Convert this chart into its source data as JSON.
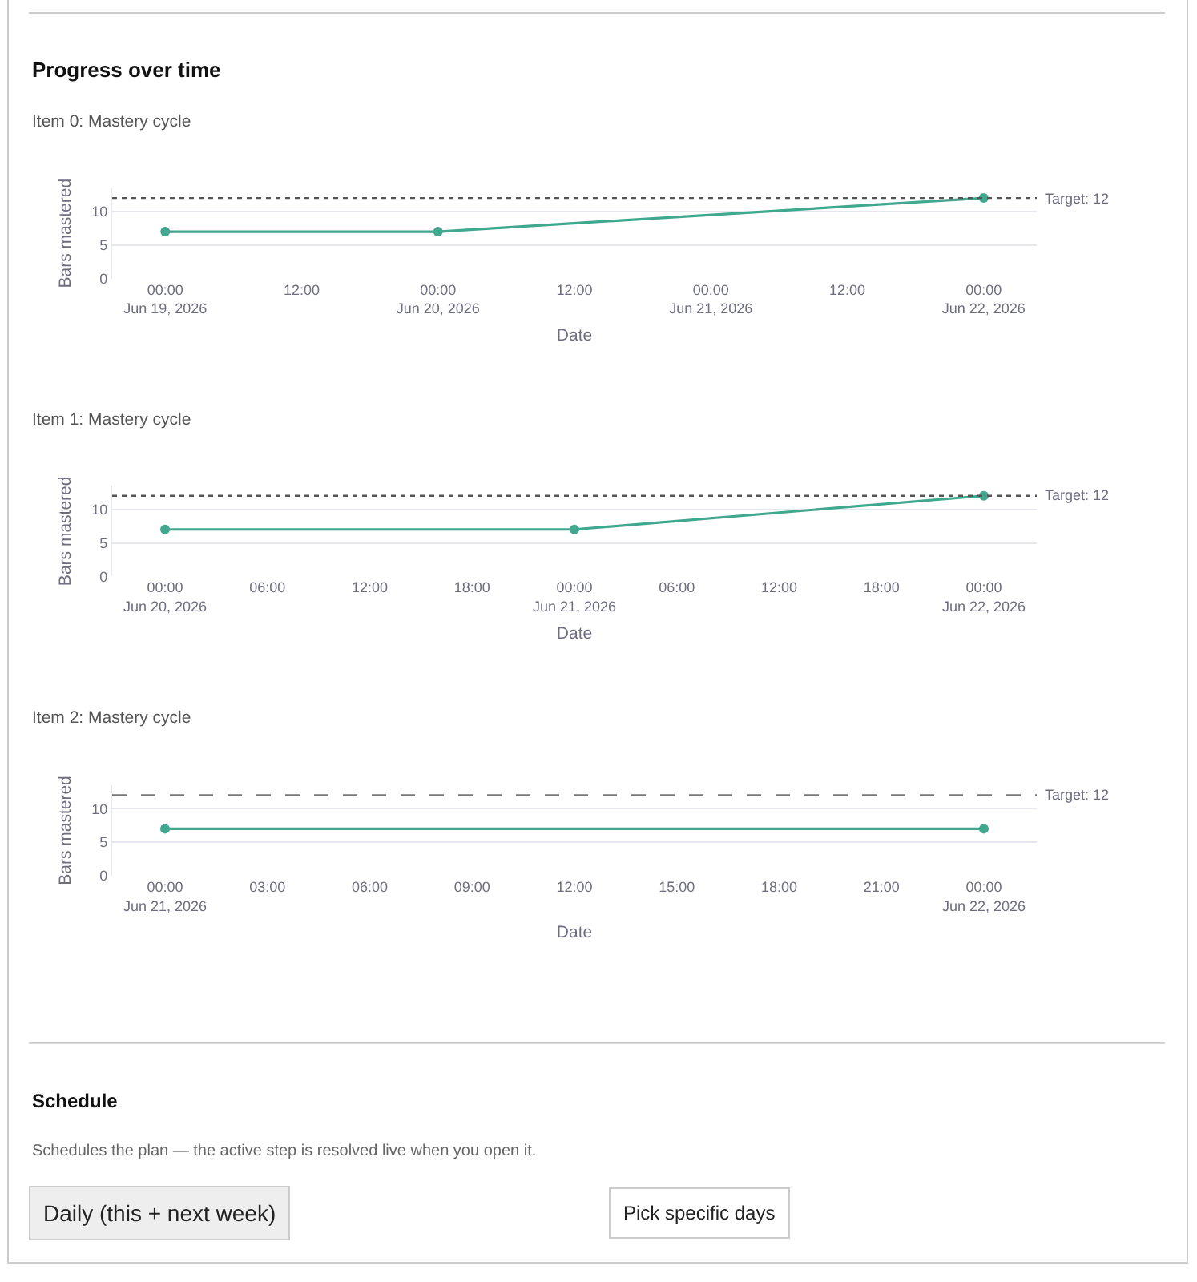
{
  "chart_data": [
    {
      "type": "line",
      "title": "Progress over time",
      "subtitle": "Item 0: Mastery cycle",
      "xlabel": "Date",
      "ylabel": "Bars mastered",
      "x": [
        "2026-06-19T00:00",
        "2026-06-20T00:00",
        "2026-06-22T00:00"
      ],
      "series": [
        {
          "color": "#3fa88e",
          "values": [
            7,
            7,
            12
          ]
        }
      ],
      "xlim": [
        "2026-06-18T19:20",
        "2026-06-22T04:40"
      ],
      "xticks": [
        {
          "value": "2026-06-19T00:00",
          "label": "00:00\nJun 19, 2026"
        },
        {
          "value": "2026-06-19T12:00",
          "label": "12:00"
        },
        {
          "value": "2026-06-20T00:00",
          "label": "00:00\nJun 20, 2026"
        },
        {
          "value": "2026-06-20T12:00",
          "label": "12:00"
        },
        {
          "value": "2026-06-21T00:00",
          "label": "00:00\nJun 21, 2026"
        },
        {
          "value": "2026-06-21T12:00",
          "label": "12:00"
        },
        {
          "value": "2026-06-22T00:00",
          "label": "00:00\nJun 22, 2026"
        }
      ],
      "ylim": [
        0,
        13.5
      ],
      "yticks": [
        0,
        5,
        10
      ],
      "ref_lines": [
        {
          "axis": "y",
          "value": 12,
          "label": "Target: 12",
          "color": "#555555",
          "line_style": "dotted"
        }
      ],
      "grid": "y",
      "marker": "circle",
      "line_style": "solid"
    },
    {
      "type": "line",
      "title": "Item 1: Mastery cycle",
      "xlabel": "Date",
      "ylabel": "Bars mastered",
      "x": [
        "2026-06-20T00:00",
        "2026-06-21T00:00",
        "2026-06-22T00:00"
      ],
      "series": [
        {
          "color": "#3fa88e",
          "values": [
            7,
            7,
            12
          ]
        }
      ],
      "xlim": [
        "2026-06-19T20:54",
        "2026-06-22T03:06"
      ],
      "ylim": [
        0,
        13.5
      ],
      "yticks": [
        0,
        5,
        10
      ],
      "xticks": [
        {
          "value": "2026-06-20T00:00",
          "label": "00:00\nJun 20, 2026"
        },
        {
          "value": "2026-06-20T06:00",
          "label": "06:00"
        },
        {
          "value": "2026-06-20T12:00",
          "label": "12:00"
        },
        {
          "value": "2026-06-20T18:00",
          "label": "18:00"
        },
        {
          "value": "2026-06-21T00:00",
          "label": "00:00\nJun 21, 2026"
        },
        {
          "value": "2026-06-21T06:00",
          "label": "06:00"
        },
        {
          "value": "2026-06-21T12:00",
          "label": "12:00"
        },
        {
          "value": "2026-06-21T18:00",
          "label": "18:00"
        },
        {
          "value": "2026-06-22T00:00",
          "label": "00:00\nJun 22, 2026"
        }
      ],
      "ref_lines": [
        {
          "axis": "y",
          "value": 12,
          "label": "Target: 12",
          "color": "#555555",
          "line_style": "dotted"
        }
      ],
      "grid": "y",
      "marker": "circle",
      "line_style": "solid"
    },
    {
      "type": "line",
      "title": "Item 2: Mastery cycle",
      "xlabel": "Date",
      "ylabel": "Bars mastered",
      "x": [
        "2026-06-21T00:00",
        "2026-06-22T00:00"
      ],
      "series": [
        {
          "color": "#3fa88e",
          "values": [
            7,
            7
          ]
        }
      ],
      "xlim": [
        "2026-06-20T22:27",
        "2026-06-22T01:33"
      ],
      "xticks": [
        {
          "value": "2026-06-21T00:00",
          "label": "00:00\nJun 21, 2026"
        },
        {
          "value": "2026-06-21T03:00",
          "label": "03:00"
        },
        {
          "value": "2026-06-21T06:00",
          "label": "06:00"
        },
        {
          "value": "2026-06-21T09:00",
          "label": "09:00"
        },
        {
          "value": "2026-06-21T12:00",
          "label": "12:00"
        },
        {
          "value": "2026-06-21T15:00",
          "label": "15:00"
        },
        {
          "value": "2026-06-21T18:00",
          "label": "18:00"
        },
        {
          "value": "2026-06-21T21:00",
          "label": "21:00"
        },
        {
          "value": "2026-06-22T00:00",
          "label": "00:00\nJun 22, 2026"
        }
      ],
      "ylim": [
        0,
        13.5
      ],
      "yticks": [
        0,
        5,
        10
      ],
      "ref_lines": [
        {
          "axis": "y",
          "value": 12,
          "label": "Target: 12",
          "color": "#777777",
          "line_style": "dashed"
        }
      ],
      "grid": "y",
      "marker": "circle",
      "line_style": "solid"
    },
    {
      "type": "other",
      "title": "Schedule",
      "subtitle": "Schedules the plan — the active step is resolved live when you open it.",
      "annotations": [
        "Daily (this + next week)",
        "Pick specific days"
      ]
    }
  ]
}
